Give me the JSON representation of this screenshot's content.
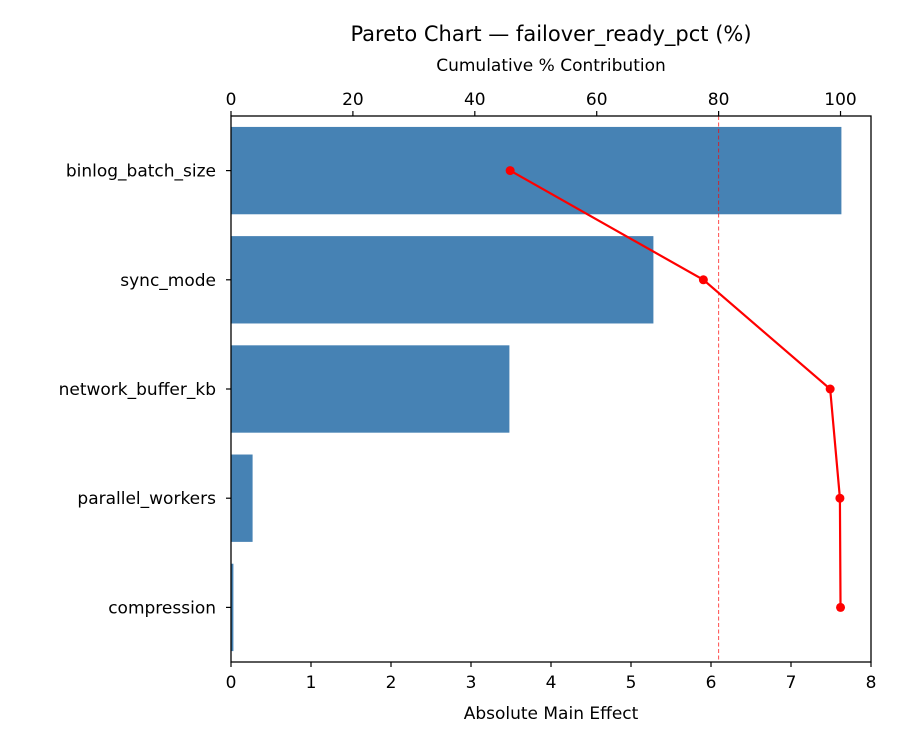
{
  "chart_data": {
    "type": "bar",
    "orientation": "horizontal",
    "title": "Pareto Chart — failover_ready_pct (%)",
    "xlabel": "Absolute Main Effect",
    "ylabel": "",
    "secondary_xlabel": "Cumulative % Contribution",
    "categories": [
      "binlog_batch_size",
      "sync_mode",
      "network_buffer_kb",
      "parallel_workers",
      "compression"
    ],
    "series": [
      {
        "name": "Absolute Main Effect",
        "type": "bar",
        "color": "#4682b4",
        "values": [
          7.63,
          5.28,
          3.48,
          0.27,
          0.03
        ]
      },
      {
        "name": "Cumulative % Contribution",
        "type": "line",
        "color": "#ff0000",
        "axis": "top",
        "values": [
          45.8,
          77.5,
          98.3,
          99.9,
          100.0
        ]
      }
    ],
    "xlim": [
      0,
      8
    ],
    "xticks": [
      0,
      1,
      2,
      3,
      4,
      5,
      6,
      7,
      8
    ],
    "secondary_xlim": [
      0,
      105
    ],
    "secondary_xticks": [
      0,
      20,
      40,
      60,
      80,
      100
    ],
    "reference_line": {
      "axis": "top",
      "value": 80,
      "style": "dashed",
      "color": "#ff0000"
    },
    "grid": false,
    "legend": null
  },
  "labels": {
    "title": "Pareto Chart — failover_ready_pct (%)",
    "top_xlabel": "Cumulative % Contribution",
    "bottom_xlabel": "Absolute Main Effect"
  }
}
